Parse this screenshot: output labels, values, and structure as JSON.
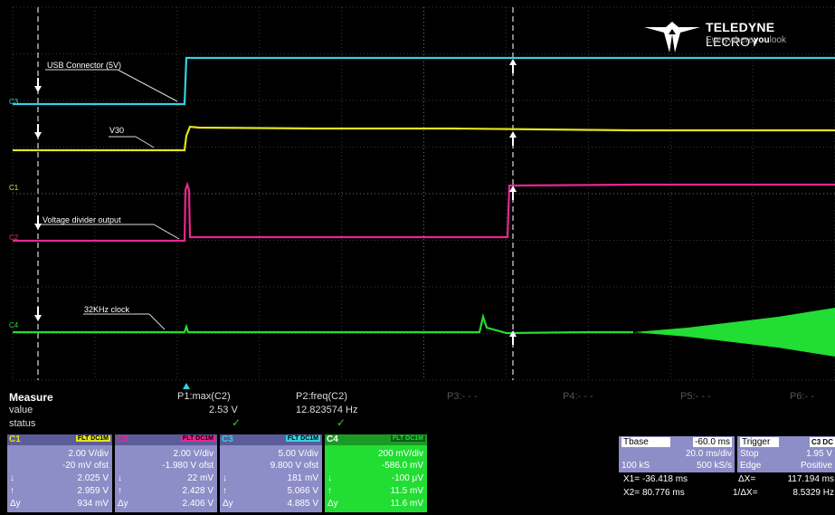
{
  "brand": {
    "name_bold": "TELEDYNE",
    "name_thin": "LECROY",
    "tag_pre": "Everywhere",
    "tag_bold": "you",
    "tag_post": "look"
  },
  "colors": {
    "c1": "#e3e31d",
    "c2": "#e8268f",
    "c3": "#33d2e0",
    "c4": "#22dd33",
    "panel": "#8d8dc7",
    "grid": "#3a3a3a"
  },
  "trace_labels": {
    "usb": "USB Connector (5V)",
    "v30": "V30",
    "divider": "Voltage divider output",
    "clock": "32KHz clock"
  },
  "channel_markers": {
    "c3": "C3",
    "c1": "C1",
    "c2": "C2",
    "c4": "C4"
  },
  "measure": {
    "title": "Measure",
    "row_value": "value",
    "row_status": "status",
    "p1_name": "P1:max(C2)",
    "p1_value": "2.53 V",
    "p2_name": "P2:freq(C2)",
    "p2_value": "12.823574 Hz",
    "p3": "P3:- - -",
    "p4": "P4:- - -",
    "p5": "P5:- - -",
    "p6": "P6:- -"
  },
  "channels": [
    {
      "id": "C1",
      "flags": "FLT DC1M",
      "vdiv": "2.00 V/div",
      "offset": "-20 mV ofst",
      "r1_sym": "↓",
      "r1": "2.025 V",
      "r2_sym": "↑",
      "r2": "2.959 V",
      "r3_sym": "Δy",
      "r3": "934 mV"
    },
    {
      "id": "C2",
      "flags": "FLT DC1M",
      "vdiv": "2.00 V/div",
      "offset": "-1.980 V ofst",
      "r1_sym": "↓",
      "r1": "22 mV",
      "r2_sym": "↑",
      "r2": "2.428 V",
      "r3_sym": "Δy",
      "r3": "2.406 V"
    },
    {
      "id": "C3",
      "flags": "FLT DC1M",
      "vdiv": "5.00 V/div",
      "offset": "9.800 V ofst",
      "r1_sym": "↓",
      "r1": "181 mV",
      "r2_sym": "↑",
      "r2": "5.066 V",
      "r3_sym": "Δy",
      "r3": "4.885 V"
    },
    {
      "id": "C4",
      "flags": "FLT DC1M",
      "vdiv": "200 mV/div",
      "offset": "-586.0 mV",
      "r1_sym": "↓",
      "r1": "-100 μV",
      "r2_sym": "↑",
      "r2": "11.5 mV",
      "r3_sym": "Δy",
      "r3": "11.6 mV"
    }
  ],
  "timebase": {
    "label": "Tbase",
    "delay": "-60.0 ms",
    "tdiv": "20.0 ms/div",
    "samples": "100 kS",
    "rate": "500 kS/s"
  },
  "trigger": {
    "label": "Trigger",
    "src": "C3 DC",
    "mode": "Stop",
    "level": "1.95 V",
    "type": "Edge",
    "slope": "Positive"
  },
  "cursors": {
    "x1_label": "X1=",
    "x1": "-36.418 ms",
    "dx_label": "ΔX=",
    "dx": "117.194 ms",
    "x2_label": "X2=",
    "x2": "80.776 ms",
    "inv_label": "1/ΔX=",
    "inv": "8.5329 Hz"
  }
}
